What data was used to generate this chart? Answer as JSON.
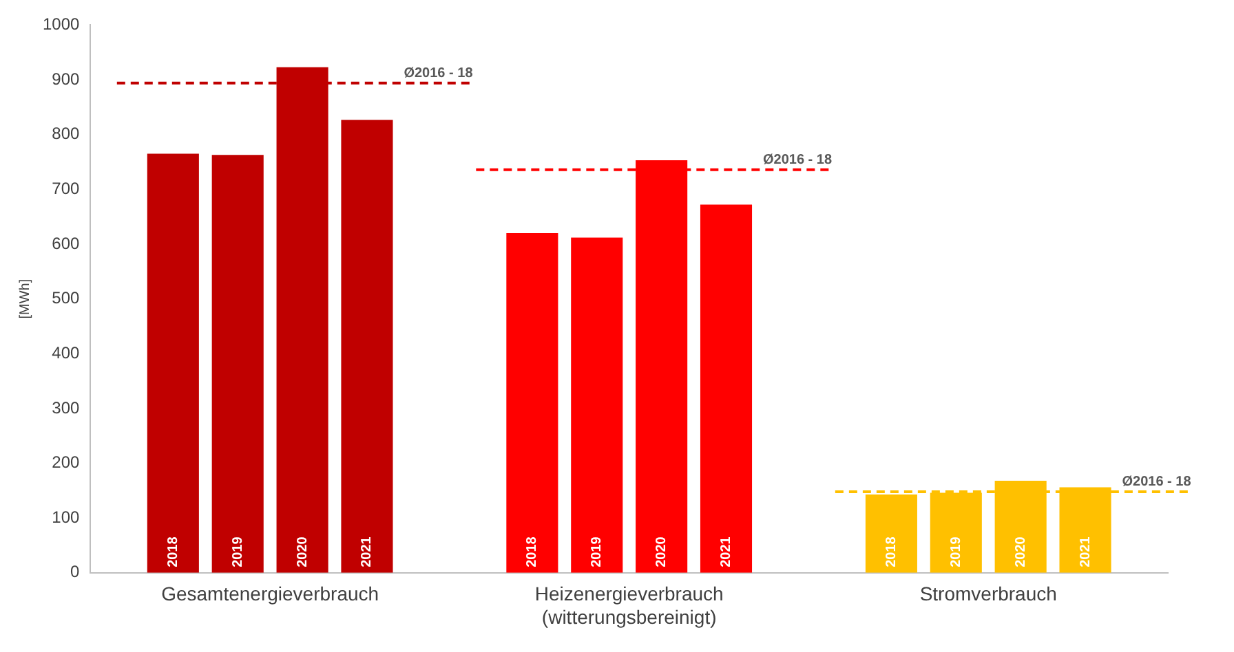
{
  "chart_data": {
    "type": "bar",
    "ylabel": "[MWh]",
    "categories": [
      "Gesamtenergieverbrauch",
      "Heizenergieverbrauch\n(witterungsbereinigt)",
      "Stromverbrauch"
    ],
    "series": [
      {
        "name": "2018",
        "colors": [
          "#c00000",
          "#ff0000",
          "#ffc000"
        ],
        "values": [
          765,
          620,
          143
        ]
      },
      {
        "name": "2019",
        "colors": [
          "#c00000",
          "#ff0000",
          "#ffc000"
        ],
        "values": [
          763,
          612,
          146
        ]
      },
      {
        "name": "2020",
        "colors": [
          "#c00000",
          "#ff0000",
          "#ffc000"
        ],
        "values": [
          923,
          753,
          168
        ]
      },
      {
        "name": "2021",
        "colors": [
          "#c00000",
          "#ff0000",
          "#ffc000"
        ],
        "values": [
          827,
          672,
          156
        ]
      }
    ],
    "ylim": [
      0,
      1000
    ],
    "yticks": [
      0,
      100,
      200,
      300,
      400,
      500,
      600,
      700,
      800,
      900,
      1000
    ],
    "grid": false,
    "legend": false,
    "ref_lines": [
      {
        "axis": "y",
        "value": 894,
        "label": "Ø2016 - 18",
        "color": "#c00000",
        "line_style": "dashed"
      },
      {
        "axis": "y",
        "value": 736,
        "label": "Ø2016 - 18",
        "color": "#ff0000",
        "line_style": "dashed"
      },
      {
        "axis": "y",
        "value": 148,
        "label": "Ø2016 - 18",
        "color": "#ffc000",
        "line_style": "dashed"
      }
    ]
  }
}
